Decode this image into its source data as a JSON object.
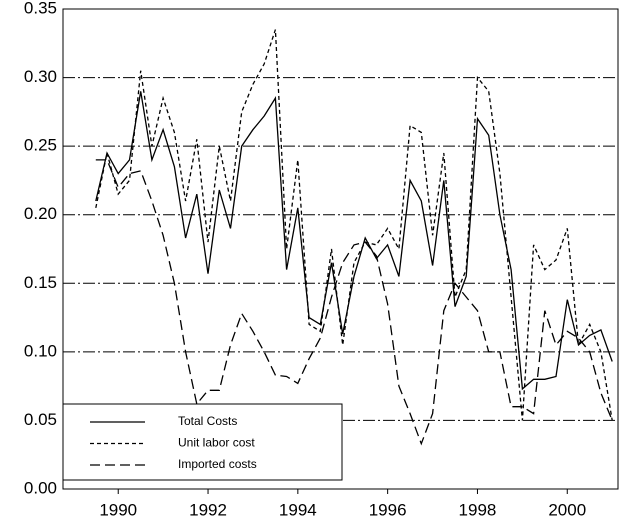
{
  "chart_data": {
    "type": "line",
    "x": [
      1989.5,
      1989.75,
      1990,
      1990.25,
      1990.5,
      1990.75,
      1991,
      1991.25,
      1991.5,
      1991.75,
      1992,
      1992.25,
      1992.5,
      1992.75,
      1993,
      1993.25,
      1993.5,
      1993.75,
      1994,
      1994.25,
      1994.5,
      1994.75,
      1995,
      1995.25,
      1995.5,
      1995.75,
      1996,
      1996.25,
      1996.5,
      1996.75,
      1997,
      1997.25,
      1997.5,
      1997.75,
      1998,
      1998.25,
      1998.5,
      1998.75,
      1999,
      1999.25,
      1999.5,
      1999.75,
      2000,
      2000.25,
      2000.5,
      2000.75,
      2001
    ],
    "series": [
      {
        "name": "Total Costs",
        "color": "#000000",
        "dash": "none",
        "values": [
          0.21,
          0.245,
          0.23,
          0.24,
          0.29,
          0.24,
          0.262,
          0.235,
          0.183,
          0.215,
          0.157,
          0.218,
          0.19,
          0.25,
          0.262,
          0.272,
          0.285,
          0.16,
          0.205,
          0.125,
          0.12,
          0.165,
          0.113,
          0.155,
          0.183,
          0.168,
          0.178,
          0.155,
          0.225,
          0.21,
          0.163,
          0.225,
          0.133,
          0.155,
          0.27,
          0.258,
          0.2,
          0.16,
          0.073,
          0.08,
          0.08,
          0.082,
          0.138,
          0.105,
          0.112,
          0.116,
          0.093
        ]
      },
      {
        "name": "Unit labor cost",
        "color": "#000000",
        "dash": "4,3",
        "values": [
          0.205,
          0.245,
          0.215,
          0.225,
          0.305,
          0.25,
          0.285,
          0.26,
          0.21,
          0.255,
          0.18,
          0.25,
          0.21,
          0.275,
          0.295,
          0.31,
          0.335,
          0.175,
          0.24,
          0.12,
          0.115,
          0.175,
          0.105,
          0.165,
          0.18,
          0.178,
          0.19,
          0.175,
          0.265,
          0.26,
          0.185,
          0.245,
          0.14,
          0.16,
          0.3,
          0.29,
          0.23,
          0.14,
          0.05,
          0.178,
          0.16,
          0.167,
          0.19,
          0.105,
          0.12,
          0.1,
          0.05
        ]
      },
      {
        "name": "Imported costs",
        "color": "#000000",
        "dash": "10,5",
        "values": [
          0.24,
          0.24,
          0.22,
          0.23,
          0.232,
          0.21,
          0.185,
          0.15,
          0.1,
          0.062,
          0.072,
          0.072,
          0.105,
          0.128,
          0.115,
          0.1,
          0.083,
          0.082,
          0.077,
          0.095,
          0.11,
          0.14,
          0.165,
          0.178,
          0.18,
          0.17,
          0.135,
          0.075,
          0.055,
          0.033,
          0.055,
          0.13,
          0.15,
          0.14,
          0.13,
          0.1,
          0.1,
          0.06,
          0.06,
          0.055,
          0.13,
          0.105,
          0.115,
          0.11,
          0.1,
          0.07,
          0.05
        ]
      }
    ],
    "xlim": [
      1988.77,
      2001.13
    ],
    "xticks": [
      1990,
      1992,
      1994,
      1996,
      1998,
      2000
    ],
    "ylim": [
      0,
      0.35
    ],
    "yticks": [
      {
        "value": 0,
        "label": "0.00"
      },
      0.05,
      {
        "value": 0.1,
        "label": "0.10"
      },
      0.15,
      {
        "value": 0.2,
        "label": "0.20"
      },
      0.25,
      {
        "value": 0.3,
        "label": "0.30"
      },
      0.35
    ],
    "grid": true,
    "legend": "lower left"
  }
}
